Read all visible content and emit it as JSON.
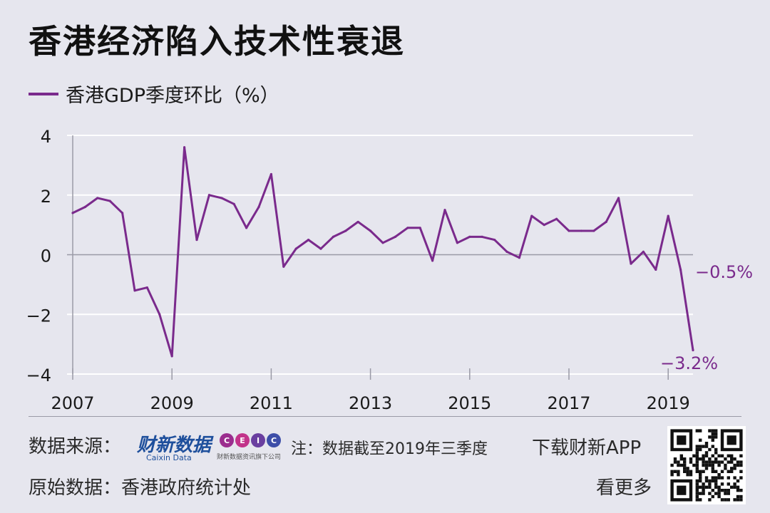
{
  "title": "香港经济陷入技术性衰退",
  "legend_label": "香港GDP季度环比（%）",
  "colors": {
    "series": "#7a2a8c",
    "grid": "#ffffff",
    "background": "#e6e6ee"
  },
  "chart_data": {
    "type": "line",
    "ylim": [
      -4,
      4
    ],
    "y_ticks": [
      4,
      2,
      0,
      -2,
      -4
    ],
    "y_tick_labels": [
      "4",
      "2",
      "0",
      "−2",
      "−4"
    ],
    "x_tick_labels": [
      "2007",
      "2009",
      "2011",
      "2013",
      "2015",
      "2017",
      "2019"
    ],
    "x_tick_quarter_index": [
      0,
      8,
      16,
      24,
      32,
      40,
      48
    ],
    "x_start_label": "2007 Q1",
    "x_end_label": "2019 Q3",
    "series": [
      {
        "values": [
          1.4,
          1.6,
          1.9,
          1.8,
          1.4,
          -1.2,
          -1.1,
          -2.0,
          -3.4,
          3.6,
          0.5,
          2.0,
          1.9,
          1.7,
          0.9,
          1.6,
          2.7,
          -0.4,
          0.2,
          0.5,
          0.2,
          0.6,
          0.8,
          1.1,
          0.8,
          0.4,
          0.6,
          0.9,
          0.9,
          -0.2,
          1.5,
          0.4,
          0.6,
          0.6,
          0.5,
          0.1,
          -0.1,
          1.3,
          1.0,
          1.2,
          0.8,
          0.8,
          0.8,
          1.1,
          1.9,
          -0.3,
          0.1,
          -0.5,
          1.3,
          -0.5,
          -3.2
        ]
      }
    ],
    "annotations": [
      {
        "text": "−0.5%",
        "point_index": 49
      },
      {
        "text": "−3.2%",
        "point_index": 50
      }
    ]
  },
  "footer": {
    "source_label": "数据来源：",
    "caixin_logo_text": "财新数据",
    "caixin_logo_sub": "Caixin Data",
    "ceic_letters": [
      "C",
      "E",
      "I",
      "C"
    ],
    "ceic_sub": "财新数据资讯旗下公司",
    "note": "注：数据截至2019年三季度",
    "original_label": "原始数据：香港政府统计处",
    "download": "下载财新APP",
    "more": "看更多"
  }
}
